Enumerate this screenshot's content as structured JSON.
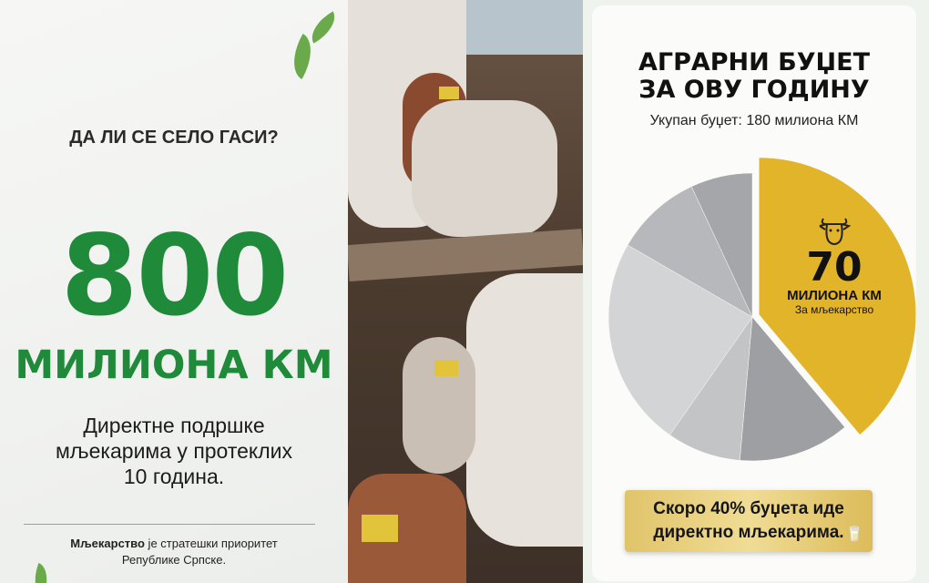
{
  "left": {
    "question": "ДА ЛИ СЕ СЕЛО ГАСИ?",
    "amount": "800",
    "unit": "МИЛИОНА КМ",
    "description": [
      "Директне подршке",
      "мљекарима у протеклих",
      "10 година."
    ],
    "footer_bold": "Мљекарство",
    "footer_rest": " је стратешки приоритет",
    "footer_line2": "Републике Српске.",
    "accent": "#1f8a3a"
  },
  "right": {
    "title_line1": "АГРАРНИ БУЏЕТ",
    "title_line2": "ЗА ОВУ ГОДИНУ",
    "subtitle": "Укупан буџет: 180 милиона КМ",
    "highlight_value": "70",
    "highlight_unit": "МИЛИОНА КМ",
    "highlight_label": "За мљекарство",
    "banner_line1": "Скоро 40% буџета иде",
    "banner_line2": "директно мљекарима.",
    "highlight_color": "#e2b429"
  },
  "chart_data": {
    "type": "pie",
    "total": 180,
    "slices": [
      {
        "label": "За мљекарство",
        "value": 70,
        "color": "#e2b429"
      },
      {
        "value": 22.5,
        "color": "#9d9fa3"
      },
      {
        "value": 15,
        "color": "#c3c4c6"
      },
      {
        "value": 42.5,
        "color": "#d3d4d5"
      },
      {
        "value": 17.5,
        "color": "#b7b8bb"
      },
      {
        "value": 12.5,
        "color": "#a5a6aa"
      }
    ]
  }
}
